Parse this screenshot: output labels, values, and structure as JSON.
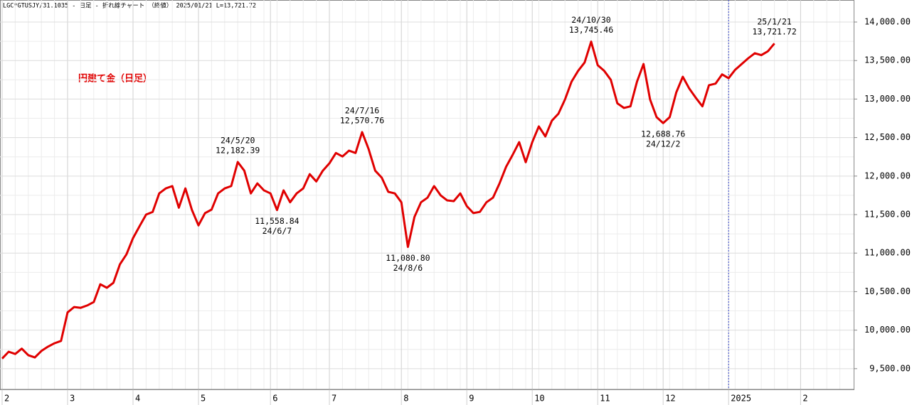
{
  "chart_data": {
    "type": "line",
    "title": "LGC*GTUSJY/31.1035 - 日足 - 折れ線チャート （終値） 2025/01/21 L=13,721.72",
    "categories": [
      "2",
      null,
      null,
      null,
      null,
      null,
      null,
      null,
      null,
      null,
      "3",
      null,
      null,
      null,
      null,
      null,
      null,
      null,
      null,
      null,
      "4",
      null,
      null,
      null,
      null,
      null,
      null,
      null,
      null,
      null,
      "5",
      null,
      null,
      null,
      null,
      null,
      null,
      null,
      null,
      null,
      null,
      "6",
      null,
      null,
      null,
      null,
      null,
      null,
      null,
      null,
      "7",
      null,
      null,
      null,
      null,
      null,
      null,
      null,
      null,
      null,
      null,
      "8",
      null,
      null,
      null,
      null,
      null,
      null,
      null,
      null,
      null,
      "9",
      null,
      null,
      null,
      null,
      null,
      null,
      null,
      null,
      null,
      "10",
      null,
      null,
      null,
      null,
      null,
      null,
      null,
      null,
      null,
      "11",
      null,
      null,
      null,
      null,
      null,
      null,
      null,
      null,
      null,
      "12",
      null,
      null,
      null,
      null,
      null,
      null,
      null,
      null,
      null,
      "2025",
      null,
      null,
      null,
      null,
      null,
      null,
      null,
      null,
      null,
      null,
      "2",
      null,
      null,
      null,
      null,
      null,
      null,
      null
    ],
    "series": [
      {
        "name": "円建て金（日足）",
        "color": "#e00000",
        "values": [
          9630,
          9720,
          9690,
          9760,
          9675,
          9645,
          9730,
          9785,
          9830,
          9860,
          10230,
          10300,
          10290,
          10320,
          10365,
          10595,
          10550,
          10615,
          10855,
          10985,
          11195,
          11350,
          11500,
          11535,
          11775,
          11840,
          11870,
          11590,
          11840,
          11560,
          11360,
          11520,
          11565,
          11775,
          11840,
          11870,
          12182.39,
          12070,
          11775,
          11905,
          11815,
          11775,
          11558.84,
          11815,
          11660,
          11775,
          11840,
          12025,
          11930,
          12070,
          12165,
          12300,
          12255,
          12330,
          12300,
          12570.76,
          12350,
          12070,
          11980,
          11795,
          11775,
          11660,
          11080.8,
          11470,
          11660,
          11720,
          11870,
          11750,
          11685,
          11675,
          11775,
          11610,
          11520,
          11535,
          11660,
          11720,
          11905,
          12120,
          12275,
          12440,
          12180,
          12440,
          12645,
          12515,
          12720,
          12810,
          12995,
          13225,
          13365,
          13475,
          13745.46,
          13440,
          13365,
          13250,
          12945,
          12885,
          12905,
          13225,
          13455,
          12995,
          12765,
          12688.76,
          12765,
          13085,
          13290,
          13135,
          13015,
          12905,
          13180,
          13200,
          13320,
          13270,
          13380,
          13455,
          13530,
          13595,
          13570,
          13620,
          13721.72,
          null,
          null,
          null,
          null,
          null,
          null,
          null,
          null,
          null,
          null,
          null
        ],
        "value_labels": [
          null,
          null,
          null,
          null,
          null,
          null,
          null,
          null,
          null,
          null,
          null,
          null,
          null,
          null,
          null,
          null,
          null,
          null,
          null,
          null,
          null,
          null,
          null,
          null,
          null,
          null,
          null,
          null,
          null,
          null,
          null,
          null,
          null,
          null,
          null,
          null,
          "12,182.39",
          null,
          null,
          null,
          null,
          null,
          "11,558.84",
          null,
          null,
          null,
          null,
          null,
          null,
          null,
          null,
          null,
          null,
          null,
          null,
          "12,570.76",
          null,
          null,
          null,
          null,
          null,
          null,
          "11,080.80",
          null,
          null,
          null,
          null,
          null,
          null,
          null,
          null,
          null,
          null,
          null,
          null,
          null,
          null,
          null,
          null,
          null,
          null,
          null,
          null,
          null,
          null,
          null,
          null,
          null,
          null,
          null,
          "13,745.46",
          null,
          null,
          null,
          null,
          null,
          null,
          null,
          null,
          null,
          null,
          "12,688.76",
          null,
          null,
          null,
          null,
          null,
          null,
          null,
          null,
          null,
          null,
          null,
          null,
          null,
          null,
          null,
          null,
          "13,721.72",
          null,
          null,
          null,
          null,
          null,
          null,
          null,
          null,
          null,
          null,
          null
        ],
        "date_labels": [
          null,
          null,
          null,
          null,
          null,
          null,
          null,
          null,
          null,
          null,
          null,
          null,
          null,
          null,
          null,
          null,
          null,
          null,
          null,
          null,
          null,
          null,
          null,
          null,
          null,
          null,
          null,
          null,
          null,
          null,
          null,
          null,
          null,
          null,
          null,
          null,
          "24/5/20",
          null,
          null,
          null,
          null,
          null,
          "24/6/7",
          null,
          null,
          null,
          null,
          null,
          null,
          null,
          null,
          null,
          null,
          null,
          null,
          "24/7/16",
          null,
          null,
          null,
          null,
          null,
          null,
          "24/8/6",
          null,
          null,
          null,
          null,
          null,
          null,
          null,
          null,
          null,
          null,
          null,
          null,
          null,
          null,
          null,
          null,
          null,
          null,
          null,
          null,
          null,
          null,
          null,
          null,
          null,
          null,
          null,
          "24/10/30",
          null,
          null,
          null,
          null,
          null,
          null,
          null,
          null,
          null,
          null,
          "24/12/2",
          null,
          null,
          null,
          null,
          null,
          null,
          null,
          null,
          null,
          null,
          null,
          null,
          null,
          null,
          null,
          null,
          "25/1/21",
          null,
          null,
          null,
          null,
          null,
          null,
          null,
          null,
          null,
          null,
          null
        ]
      }
    ],
    "ylim": [
      9231,
      14286
    ],
    "yticks": [
      {
        "value": 9500,
        "label": "9,500.00"
      },
      {
        "value": 10000,
        "label": "10,000.00"
      },
      {
        "value": 10500,
        "label": "10,500.00"
      },
      {
        "value": 11000,
        "label": "11,000.00"
      },
      {
        "value": 11500,
        "label": "11,500.00"
      },
      {
        "value": 12000,
        "label": "12,000.00"
      },
      {
        "value": 12500,
        "label": "12,500.00"
      },
      {
        "value": 13000,
        "label": "13,000.00"
      },
      {
        "value": 13500,
        "label": "13,500.00"
      },
      {
        "value": 14000,
        "label": "14,000.00"
      }
    ],
    "grid": true
  }
}
